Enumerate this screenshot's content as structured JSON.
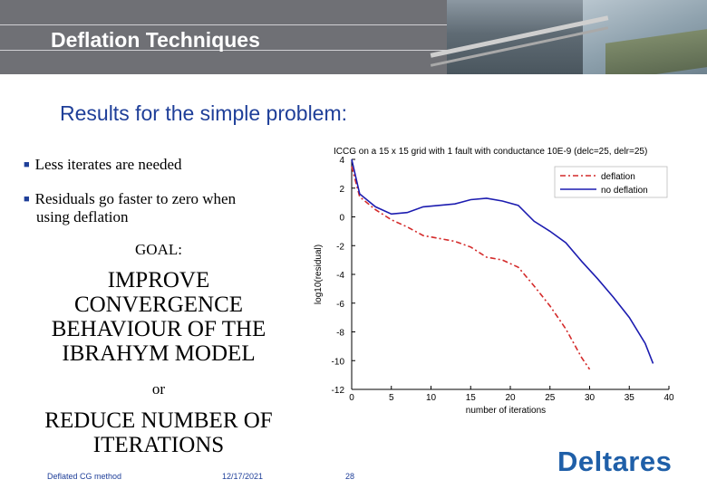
{
  "header": {
    "title": "Deflation Techniques"
  },
  "subtitle": "Results for the simple problem:",
  "bullets": [
    "Less iterates are needed",
    "Residuals go faster to zero when",
    "using deflation"
  ],
  "goal": {
    "label": "GOAL:",
    "line1": "IMPROVE",
    "line2": "CONVERGENCE",
    "line3": "BEHAVIOUR OF THE",
    "line4": "IBRAHYM MODEL",
    "or": "or",
    "alt1": "REDUCE NUMBER OF",
    "alt2": "ITERATIONS"
  },
  "footer": {
    "left": "Deflated CG method",
    "date": "12/17/2021",
    "page": "28"
  },
  "logo": "Deltares",
  "colors": {
    "accent": "#1f3f99",
    "deflation": "#d42a2a",
    "no_deflation": "#1c1cb0"
  },
  "chart_data": {
    "type": "line",
    "title": "ICCG on a 15 x 15 grid with 1 fault with conductance 10E-9 (delc=25, delr=25)",
    "xlabel": "number of iterations",
    "ylabel": "log10(residual)",
    "xlim": [
      0,
      40
    ],
    "ylim": [
      -12,
      4
    ],
    "xticks": [
      0,
      5,
      10,
      15,
      20,
      25,
      30,
      35,
      40
    ],
    "yticks": [
      4,
      2,
      0,
      -2,
      -4,
      -6,
      -8,
      -10,
      -12
    ],
    "legend": "top-right",
    "grid": false,
    "series": [
      {
        "name": "deflation",
        "style": "dash-dot",
        "x": [
          0,
          1,
          3,
          5,
          7,
          9,
          11,
          13,
          15,
          17,
          19,
          21,
          23,
          25,
          27,
          29,
          30
        ],
        "y": [
          3.5,
          1.4,
          0.5,
          -0.2,
          -0.7,
          -1.3,
          -1.5,
          -1.7,
          -2.1,
          -2.8,
          -3.0,
          -3.5,
          -4.8,
          -6.2,
          -7.8,
          -9.8,
          -10.6
        ]
      },
      {
        "name": "no deflation",
        "style": "solid",
        "x": [
          0,
          1,
          3,
          5,
          7,
          9,
          11,
          13,
          15,
          17,
          19,
          21,
          23,
          25,
          27,
          29,
          31,
          33,
          35,
          37,
          38
        ],
        "y": [
          4.0,
          1.6,
          0.7,
          0.2,
          0.3,
          0.7,
          0.8,
          0.9,
          1.2,
          1.3,
          1.1,
          0.8,
          -0.3,
          -1.0,
          -1.8,
          -3.1,
          -4.3,
          -5.6,
          -7.0,
          -8.8,
          -10.2
        ]
      }
    ]
  }
}
